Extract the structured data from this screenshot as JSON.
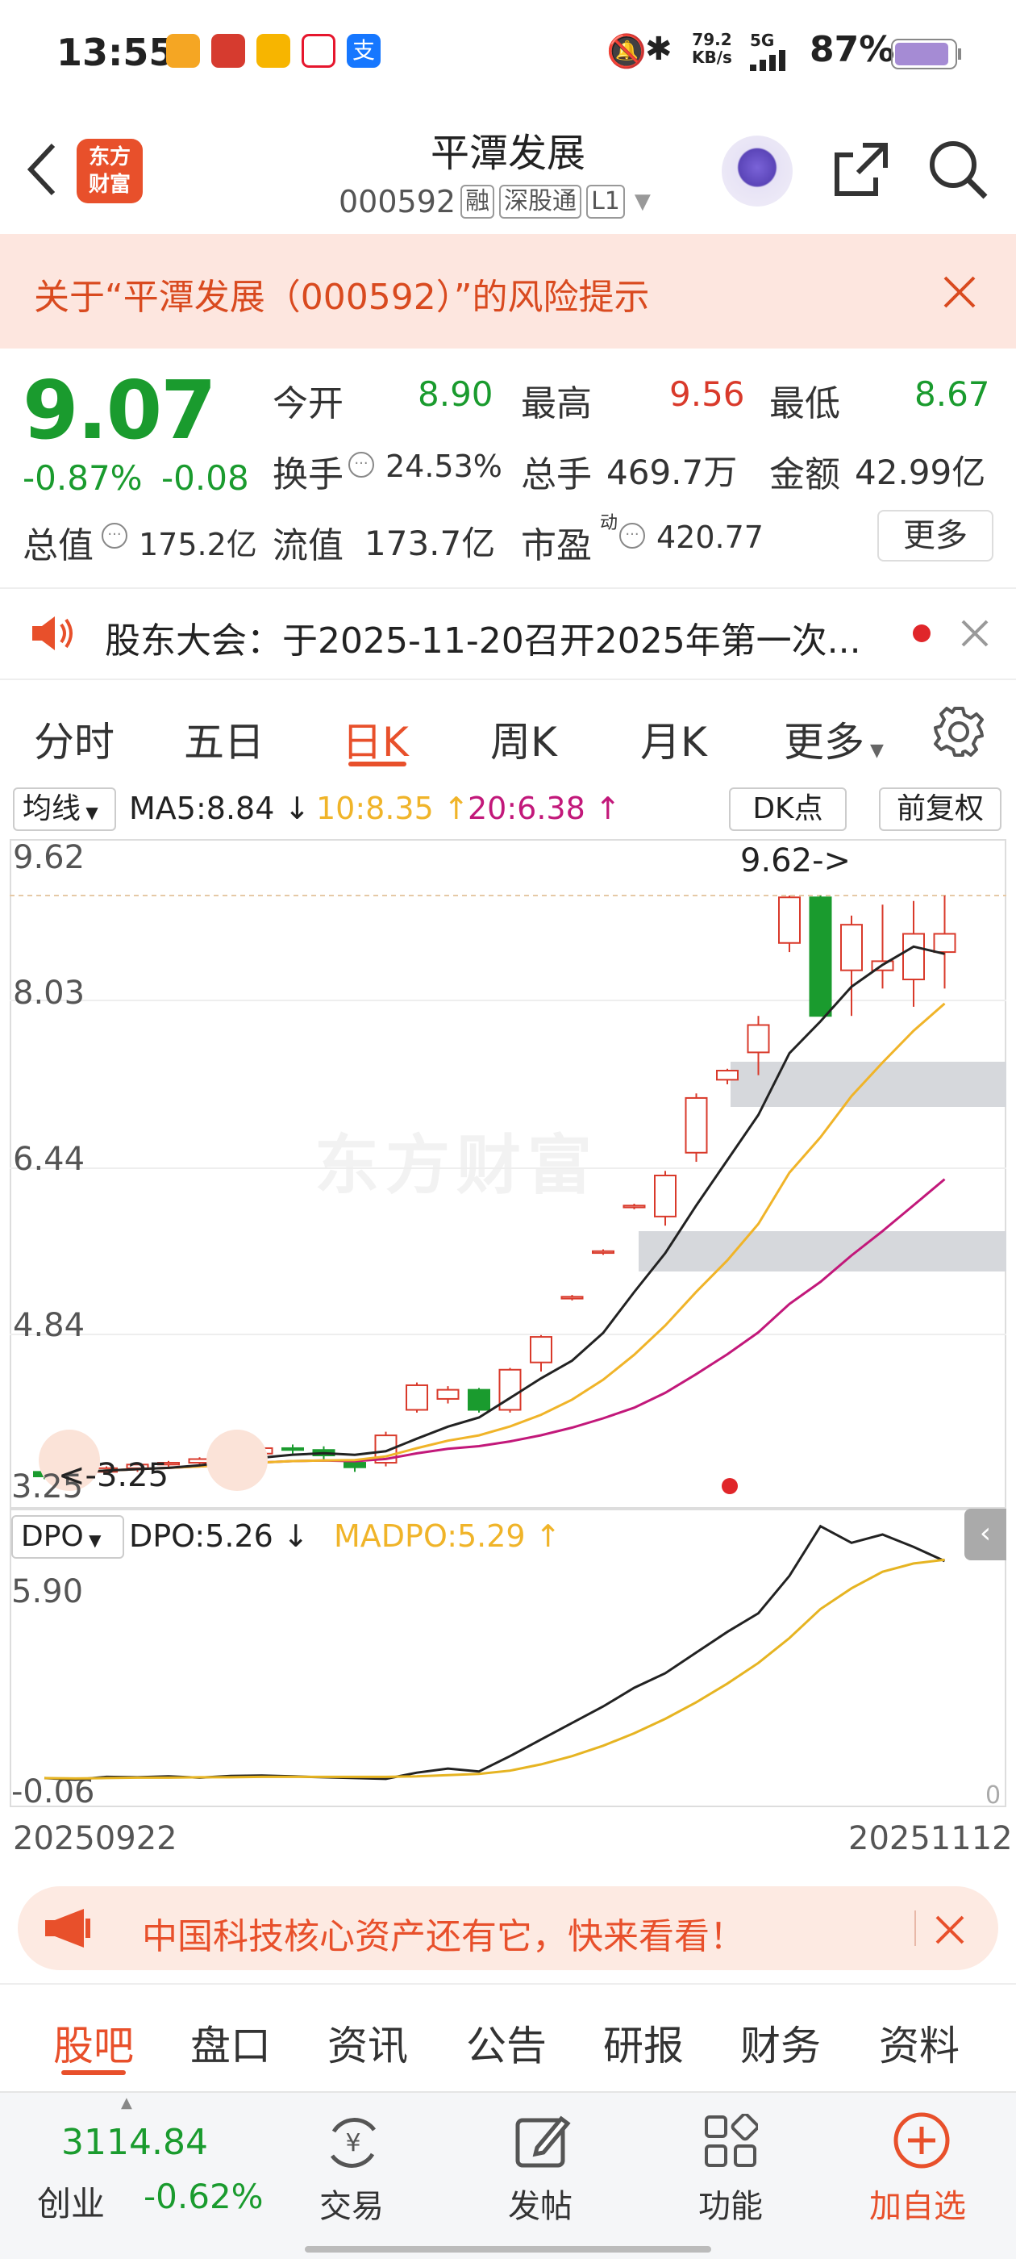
{
  "status_bar": {
    "time": "13:55",
    "net_speed": "79.2",
    "net_unit": "KB/s",
    "signal": "5G",
    "battery": "87%"
  },
  "header": {
    "logo_text_1": "东方",
    "logo_text_2": "财富",
    "title": "平潭发展",
    "code": "000592",
    "tags": [
      "融",
      "深股通",
      "L1"
    ]
  },
  "risk_banner": {
    "text": "关于“平潭发展（000592）”的风险提示"
  },
  "quote": {
    "price": "9.07",
    "change_pct": "-0.87%",
    "change": "-0.08",
    "open_label": "今开",
    "open": "8.90",
    "high_label": "最高",
    "high": "9.56",
    "low_label": "最低",
    "low": "8.67",
    "turnover_label": "换手",
    "turnover": "24.53%",
    "volume_label": "总手",
    "volume": "469.7万",
    "amount_label": "金额",
    "amount": "42.99亿",
    "mktcap_label": "总值",
    "mktcap": "175.2亿",
    "float_label": "流值",
    "float": "173.7亿",
    "pe_label": "市盈",
    "pe_sup": "动",
    "pe": "420.77",
    "more_button": "更多"
  },
  "notice": {
    "text": "股东大会：于2025-11-20召开2025年第一次..."
  },
  "chart_tabs": {
    "tabs": [
      "分时",
      "五日",
      "日K",
      "周K",
      "月K"
    ],
    "active": "日K",
    "more": "更多"
  },
  "ma_bar": {
    "selector": "均线",
    "ma5": "MA5:8.84",
    "ma10": "10:8.35",
    "ma20": "20:6.38",
    "dk": "DK点",
    "adjust": "前复权"
  },
  "main_chart": {
    "y_ticks": [
      "9.62",
      "8.03",
      "6.44",
      "4.84",
      "3.25"
    ],
    "high_marker": "9.62",
    "low_marker": "3.25",
    "watermark": "东方财富"
  },
  "indicator": {
    "selector": "DPO",
    "dpo": "DPO:5.26",
    "madpo": "MADPO:5.29",
    "y_top": "5.90",
    "y_bottom": "-0.06",
    "zero": "0"
  },
  "date_range": {
    "start": "20250922",
    "end": "20251112"
  },
  "ad_banner": {
    "text": "中国科技核心资产还有它，快来看看！"
  },
  "section_tabs": {
    "tabs": [
      "股吧",
      "盘口",
      "资讯",
      "公告",
      "研报",
      "财务",
      "资料"
    ],
    "active": "股吧"
  },
  "bottom_bar": {
    "index_value": "3114.84",
    "index_name": "创业",
    "index_change": "-0.62%",
    "items": [
      "交易",
      "发帖",
      "功能",
      "加自选"
    ]
  },
  "colors": {
    "up": "#d93a2b",
    "down": "#1a9b2e",
    "accent": "#e8502b",
    "ma10": "#f0b429",
    "ma20": "#c2187a"
  },
  "chart_data": {
    "type": "line",
    "title": "",
    "x_range": [
      "20250922",
      "20251112"
    ],
    "ylim": [
      3.25,
      9.62
    ],
    "series": [
      {
        "name": "MA5",
        "last": 8.84
      },
      {
        "name": "10",
        "last": 8.35
      },
      {
        "name": "20",
        "last": 6.38
      }
    ],
    "indicator_series": [
      {
        "name": "DPO",
        "last": 5.26
      },
      {
        "name": "MADPO",
        "last": 5.29
      }
    ],
    "indicator_ylim": [
      -0.06,
      5.9
    ]
  }
}
